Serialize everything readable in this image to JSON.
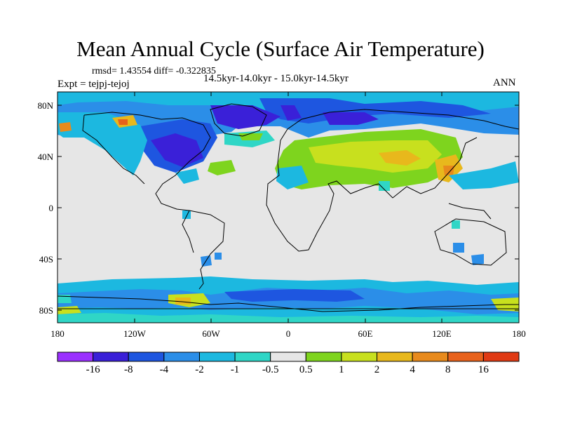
{
  "title": "Mean Annual Cycle (Surface Air Temperature)",
  "stats": "rmsd= 1.43554 diff= -0.322835",
  "experiment": "Expt = tejpj-tejoj",
  "period": "14.5kyr-14.0kyr - 15.0kyr-14.5kyr",
  "season": "ANN",
  "lat_ticks": [
    "80N",
    "40N",
    "0",
    "40S",
    "80S"
  ],
  "lon_ticks": [
    "180",
    "120W",
    "60W",
    "0",
    "60E",
    "120E",
    "180"
  ],
  "colorbar": {
    "labels": [
      "-16",
      "-8",
      "-4",
      "-2",
      "-1",
      "-0.5",
      "0.5",
      "1",
      "2",
      "4",
      "8",
      "16"
    ],
    "colors": [
      "#9b30ff",
      "#3a20d8",
      "#1e56e0",
      "#2b8ee8",
      "#1cb8e0",
      "#2fd6c6",
      "#e6e6e6",
      "#7ed41e",
      "#c8e01e",
      "#e8b81c",
      "#e88a1c",
      "#e8621c",
      "#e03a14"
    ]
  },
  "background_color": "#e6e6e6"
}
